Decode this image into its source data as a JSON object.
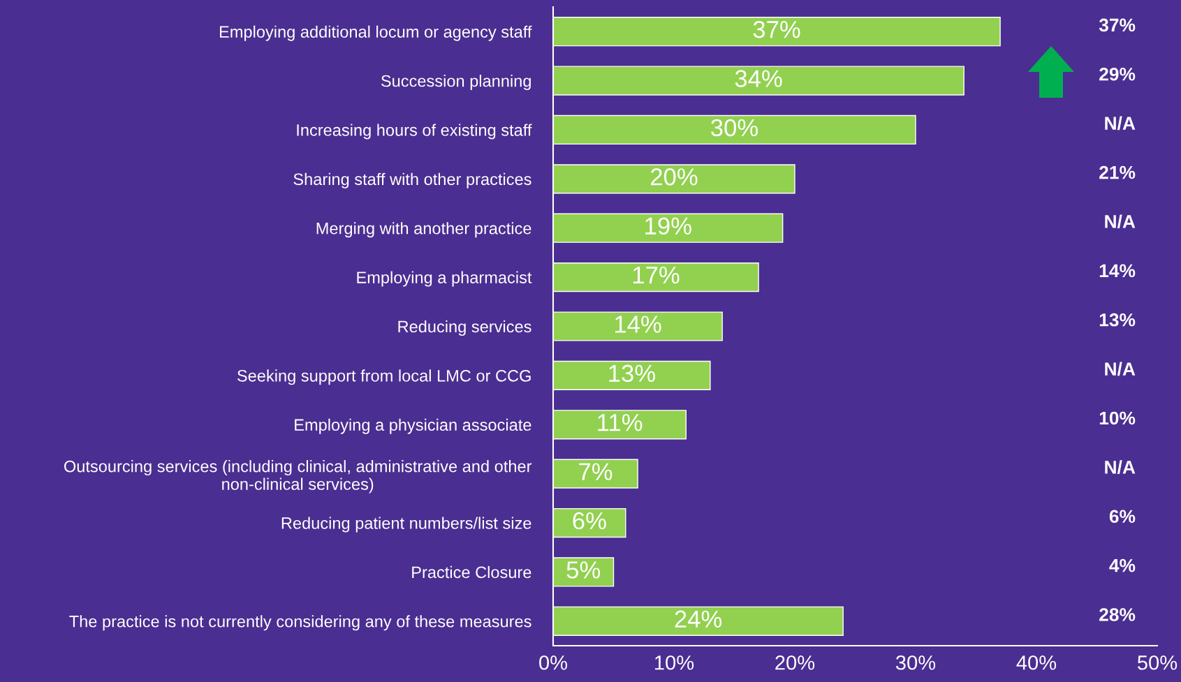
{
  "chart_data": {
    "type": "bar",
    "orientation": "horizontal",
    "categories": [
      "Employing additional locum or agency staff",
      "Succession planning",
      "Increasing hours of existing staff",
      "Sharing staff with other practices",
      "Merging with another practice",
      "Employing a pharmacist",
      "Reducing services",
      "Seeking support from local LMC or CCG",
      "Employing a physician associate",
      "Outsourcing services (including clinical, administrative and other\nnon-clinical services)",
      "Reducing patient numbers/list size",
      "Practice Closure",
      "The practice is not currently considering any of these measures"
    ],
    "values": [
      37,
      34,
      30,
      20,
      19,
      17,
      14,
      13,
      11,
      7,
      6,
      5,
      24
    ],
    "value_labels": [
      "37%",
      "34%",
      "30%",
      "20%",
      "19%",
      "17%",
      "14%",
      "13%",
      "11%",
      "7%",
      "6%",
      "5%",
      "24%"
    ],
    "color": "#92d050",
    "xlim": [
      0,
      50
    ],
    "xticks": [
      {
        "value": 0,
        "label": "0%"
      },
      {
        "value": 10,
        "label": "10%"
      },
      {
        "value": 20,
        "label": "20%"
      },
      {
        "value": 30,
        "label": "30%"
      },
      {
        "value": 40,
        "label": "40%"
      },
      {
        "value": 50,
        "label": "50%"
      }
    ],
    "annotations": [
      "37%",
      "29%",
      "N/A",
      "21%",
      "N/A",
      "14%",
      "13%",
      "N/A",
      "10%",
      "N/A",
      "6%",
      "4%",
      "28%"
    ],
    "grid": false,
    "legend": false
  }
}
